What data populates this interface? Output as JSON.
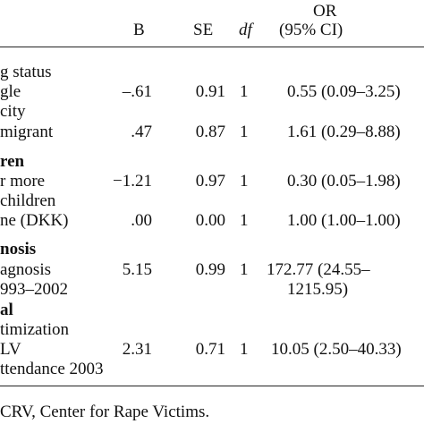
{
  "header": {
    "or_top": "OR",
    "b": "B",
    "se": "SE",
    "df": "df",
    "or_ci": "(95% CI)"
  },
  "rows": {
    "marital_status": "g status",
    "single": "gle",
    "ethnicity": "city",
    "immigrant": "migrant",
    "children": "ren",
    "four_or_more": "r more",
    "children_line": "children",
    "income": "ne (DKK)",
    "diagnosis": "nosis",
    "diagnosis_sub": "agnosis",
    "period": "993–2002",
    "revict_a": "al",
    "revict_b": "timization",
    "crv": "LV",
    "attendance": "ttendance 2003"
  },
  "values": {
    "single": {
      "b": "–.61",
      "se": "0.91",
      "df": "1",
      "or": "0.55 (0.09–3.25)"
    },
    "immigrant": {
      "b": ".47",
      "se": "0.87",
      "df": "1",
      "or": "1.61 (0.29–8.88)"
    },
    "four_or_more": {
      "b": "−1.21",
      "se": "0.97",
      "df": "1",
      "or": "0.30 (0.05–1.98)"
    },
    "income": {
      "b": ".00",
      "se": "0.00",
      "df": "1",
      "or": "1.00 (1.00–1.00)"
    },
    "diagnosis": {
      "b": "5.15",
      "se": "0.99",
      "df": "1",
      "or_a": "172.77 (24.55–",
      "or_b": "1215.95)"
    },
    "attendance": {
      "b": "2.31",
      "se": "0.71",
      "df": "1",
      "or": "10.05 (2.50–40.33)"
    }
  },
  "footnote": "CRV, Center for Rape Victims."
}
